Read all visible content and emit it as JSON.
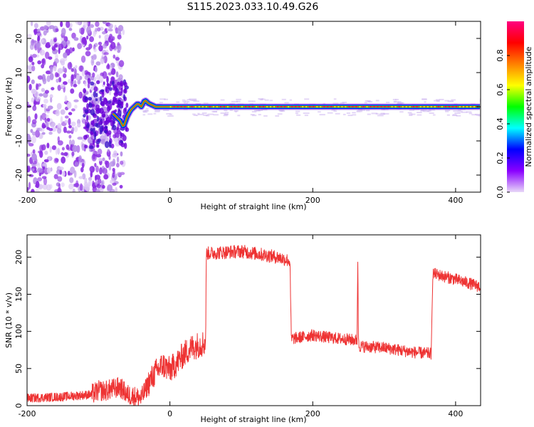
{
  "title": "S115.2023.033.10.49.G26",
  "chart_data": [
    {
      "type": "heatmap",
      "xlabel": "Height of straight line (km)",
      "ylabel": "Frequency (Hz)",
      "xlim": [
        -200,
        435
      ],
      "ylim": [
        -25,
        25
      ],
      "x_ticks": [
        -200,
        0,
        200,
        400
      ],
      "y_ticks": [
        -20,
        -10,
        0,
        10,
        20
      ],
      "colorbar": {
        "label": "Normalized spectral amplitude",
        "range": [
          0,
          1
        ],
        "ticks": [
          "0.0",
          "0.2",
          "0.4",
          "0.6",
          "0.8"
        ],
        "colors": [
          "#e8d8f8",
          "#8a00ff",
          "#0000ff",
          "#00ffff",
          "#00ff00",
          "#ffff00",
          "#ff8000",
          "#ff0000",
          "#ff0080"
        ]
      },
      "ridge": {
        "x": [
          -80,
          -70,
          -65,
          -60,
          -55,
          -50,
          -45,
          -40,
          -35,
          -30,
          -20,
          0,
          100,
          200,
          300,
          400,
          435
        ],
        "frequency": [
          -2,
          -4,
          -6,
          -3,
          -1,
          0,
          1,
          0,
          2,
          1,
          0,
          0,
          0,
          0,
          0,
          0,
          0
        ]
      },
      "noise_region_x": [
        -200,
        -65
      ],
      "grid": false
    },
    {
      "type": "line",
      "xlabel": "Height of straight line (km)",
      "ylabel": "SNR (10 * v/v)",
      "xlim": [
        -200,
        435
      ],
      "ylim": [
        0,
        230
      ],
      "x_ticks": [
        -200,
        0,
        200,
        400
      ],
      "y_ticks": [
        0,
        50,
        100,
        150,
        200
      ],
      "color": "#ee3333",
      "grid": false,
      "series": [
        {
          "x": [
            -200,
            -150,
            -110,
            -100,
            -90,
            -70,
            -60,
            -40,
            -30,
            -20,
            -10,
            0,
            10,
            20,
            30,
            40,
            50,
            51,
            100,
            150,
            168,
            170,
            200,
            220,
            240,
            262,
            263,
            264,
            265,
            300,
            340,
            366,
            368,
            400,
            435
          ],
          "values": [
            10,
            12,
            15,
            20,
            20,
            25,
            15,
            10,
            30,
            45,
            55,
            48,
            58,
            70,
            78,
            82,
            85,
            205,
            208,
            200,
            195,
            90,
            95,
            92,
            90,
            88,
            200,
            90,
            80,
            78,
            72,
            70,
            178,
            170,
            160
          ]
        }
      ]
    }
  ]
}
